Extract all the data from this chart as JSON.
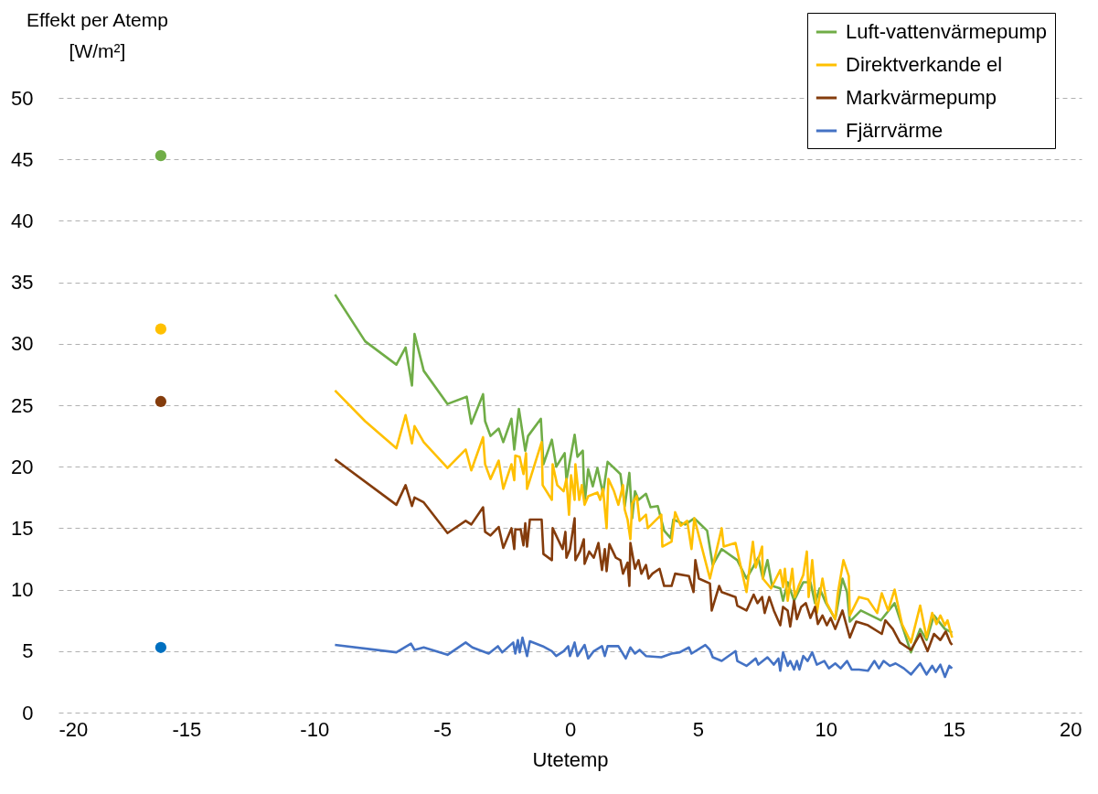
{
  "chart_data": {
    "type": "line",
    "xlabel": "Utetemp",
    "ylabel": "Effekt per Atemp [W/m²]",
    "xlim": [
      -20,
      20
    ],
    "xticks": [
      -20,
      -15,
      -10,
      -5,
      0,
      5,
      10,
      15,
      20
    ],
    "ylim": [
      0,
      50
    ],
    "yticks": [
      0,
      5,
      10,
      15,
      20,
      25,
      30,
      35,
      40,
      45,
      50
    ],
    "grid": "y",
    "legend": "top right",
    "line_style": "solid",
    "marker": "none",
    "series": [
      {
        "name": "Luft-vattenvärmepump",
        "color": "#70ad47",
        "x": [
          -9.19,
          -8.01,
          -6.79,
          -6.43,
          -6.18,
          -6.08,
          -5.72,
          -4.79,
          -4.04,
          -3.86,
          -3.4,
          -3.32,
          -3.11,
          -2.79,
          -2.61,
          -2.29,
          -2.18,
          -2.0,
          -1.75,
          -1.64,
          -1.14,
          -1.04,
          -0.71,
          -0.54,
          -0.21,
          -0.14,
          0.18,
          0.29,
          0.5,
          0.57,
          0.71,
          0.89,
          1.07,
          1.29,
          1.47,
          1.97,
          2.14,
          2.32,
          2.43,
          2.54,
          2.68,
          2.97,
          3.15,
          3.43,
          3.68,
          3.93,
          4.04,
          4.5,
          4.86,
          5.36,
          5.58,
          5.93,
          6.54,
          6.9,
          7.15,
          7.36,
          7.54,
          7.72,
          7.9,
          8.22,
          8.33,
          8.51,
          8.76,
          9.12,
          9.4,
          9.58,
          9.76,
          10.01,
          10.37,
          10.65,
          10.83,
          10.94,
          11.37,
          12.15,
          12.69,
          12.98,
          13.33,
          13.69,
          13.94,
          14.23,
          14.66,
          14.94
        ],
        "values": [
          34.0,
          30.2,
          28.3,
          29.7,
          26.6,
          30.8,
          27.8,
          25.1,
          25.7,
          23.5,
          25.9,
          23.7,
          22.5,
          23.1,
          22.0,
          23.9,
          21.4,
          24.7,
          21.3,
          22.5,
          23.9,
          20.2,
          22.2,
          20.0,
          21.1,
          18.9,
          22.6,
          20.8,
          21.3,
          17.0,
          19.8,
          18.4,
          19.9,
          17.8,
          20.4,
          19.4,
          16.8,
          19.5,
          15.8,
          18.0,
          17.3,
          17.8,
          16.7,
          16.8,
          14.8,
          14.2,
          15.7,
          15.3,
          15.8,
          14.8,
          12.0,
          13.3,
          12.4,
          10.9,
          11.8,
          12.6,
          10.9,
          12.4,
          10.3,
          10.1,
          9.1,
          10.6,
          9.1,
          10.6,
          10.6,
          8.9,
          10.1,
          8.9,
          7.6,
          10.9,
          9.8,
          7.4,
          8.3,
          7.5,
          8.9,
          7.1,
          4.9,
          6.8,
          5.9,
          7.9,
          6.8,
          6.5
        ]
      },
      {
        "name": "Direktverkande el",
        "color": "#ffc000",
        "x": [
          -9.19,
          -8.01,
          -6.79,
          -6.43,
          -6.18,
          -6.08,
          -5.72,
          -4.79,
          -4.08,
          -3.86,
          -3.4,
          -3.32,
          -3.11,
          -2.79,
          -2.61,
          -2.29,
          -2.18,
          -2.14,
          -1.97,
          -1.82,
          -1.72,
          -1.68,
          -1.11,
          -1.07,
          -0.71,
          -0.68,
          -0.5,
          -0.25,
          -0.14,
          -0.04,
          0.04,
          0.18,
          0.21,
          0.36,
          0.46,
          0.57,
          0.71,
          1.07,
          1.18,
          1.29,
          1.43,
          1.5,
          1.72,
          1.89,
          2.07,
          2.14,
          2.25,
          2.36,
          2.43,
          2.61,
          2.72,
          2.97,
          3.04,
          3.57,
          3.61,
          3.97,
          4.11,
          4.33,
          4.58,
          4.75,
          4.86,
          5.47,
          5.93,
          6.01,
          6.47,
          6.9,
          7.15,
          7.26,
          7.51,
          7.54,
          7.86,
          8.22,
          8.33,
          8.4,
          8.51,
          8.69,
          8.79,
          8.94,
          9.12,
          9.26,
          9.33,
          9.47,
          9.65,
          9.87,
          10.04,
          10.37,
          10.47,
          10.69,
          10.9,
          10.94,
          11.3,
          11.65,
          12.01,
          12.19,
          12.44,
          12.69,
          12.98,
          13.33,
          13.69,
          13.94,
          14.16,
          14.33,
          14.48,
          14.66,
          14.76,
          14.94
        ],
        "values": [
          26.2,
          23.7,
          21.5,
          24.2,
          21.9,
          23.3,
          22.0,
          19.9,
          21.4,
          19.7,
          22.4,
          20.2,
          19.0,
          20.5,
          18.2,
          20.2,
          18.9,
          20.9,
          20.8,
          19.4,
          21.1,
          18.2,
          22.0,
          18.5,
          17.3,
          20.2,
          18.5,
          18.0,
          19.0,
          16.1,
          19.3,
          17.3,
          20.2,
          17.3,
          18.5,
          16.9,
          17.6,
          17.9,
          17.3,
          18.2,
          15.0,
          19.0,
          18.0,
          16.9,
          18.5,
          16.5,
          15.7,
          14.1,
          17.0,
          17.6,
          15.6,
          16.1,
          15.0,
          16.1,
          13.5,
          13.9,
          16.3,
          15.2,
          15.6,
          13.3,
          15.8,
          10.9,
          15.0,
          13.5,
          13.8,
          9.8,
          13.9,
          11.8,
          13.5,
          10.9,
          10.1,
          11.6,
          10.2,
          11.7,
          9.1,
          11.7,
          9.4,
          10.3,
          11.2,
          13.1,
          9.4,
          12.4,
          8.1,
          10.9,
          8.9,
          7.6,
          9.7,
          12.4,
          11.1,
          7.9,
          9.4,
          9.2,
          8.1,
          9.7,
          8.3,
          10.0,
          7.2,
          5.7,
          8.7,
          6.1,
          8.1,
          7.2,
          7.9,
          7.1,
          7.5,
          6.1
        ]
      },
      {
        "name": "Markvärmepump",
        "color": "#843c0c",
        "x": [
          -9.19,
          -6.79,
          -6.43,
          -6.18,
          -6.08,
          -5.72,
          -4.79,
          -4.08,
          -3.86,
          -3.4,
          -3.32,
          -3.11,
          -2.79,
          -2.61,
          -2.29,
          -2.18,
          -2.14,
          -1.93,
          -1.82,
          -1.75,
          -1.68,
          -1.57,
          -1.11,
          -1.04,
          -0.71,
          -0.68,
          -0.29,
          -0.18,
          -0.14,
          0.0,
          0.18,
          0.21,
          0.39,
          0.54,
          0.57,
          0.75,
          0.93,
          1.11,
          1.25,
          1.36,
          1.43,
          1.54,
          1.79,
          1.97,
          2.07,
          2.25,
          2.32,
          2.36,
          2.54,
          2.68,
          2.79,
          2.97,
          3.07,
          3.22,
          3.5,
          3.68,
          3.97,
          4.11,
          4.65,
          4.83,
          4.9,
          5.04,
          5.47,
          5.54,
          5.83,
          5.93,
          6.47,
          6.54,
          6.9,
          7.18,
          7.33,
          7.51,
          7.61,
          7.79,
          7.97,
          8.22,
          8.33,
          8.51,
          8.61,
          8.76,
          8.87,
          9.04,
          9.22,
          9.4,
          9.58,
          9.69,
          9.87,
          10.04,
          10.19,
          10.37,
          10.65,
          10.94,
          11.19,
          11.65,
          12.19,
          12.33,
          12.62,
          12.9,
          13.33,
          13.69,
          13.98,
          14.23,
          14.48,
          14.69,
          14.87,
          14.94
        ],
        "values": [
          20.6,
          16.9,
          18.5,
          16.8,
          17.5,
          17.1,
          14.6,
          15.6,
          15.3,
          16.7,
          14.7,
          14.4,
          15.1,
          13.4,
          15.0,
          13.3,
          14.9,
          14.9,
          13.6,
          15.4,
          13.5,
          15.7,
          15.7,
          12.9,
          12.4,
          15.0,
          13.3,
          14.7,
          12.6,
          13.3,
          15.8,
          12.4,
          13.1,
          14.1,
          12.1,
          13.1,
          12.6,
          13.8,
          11.6,
          13.3,
          11.5,
          13.7,
          12.6,
          12.4,
          11.3,
          12.2,
          10.3,
          13.8,
          11.7,
          12.4,
          11.3,
          12.0,
          10.9,
          11.3,
          11.7,
          10.3,
          10.3,
          11.3,
          11.1,
          9.8,
          12.4,
          10.9,
          10.5,
          8.3,
          10.3,
          9.8,
          9.4,
          8.7,
          8.3,
          9.6,
          8.9,
          9.4,
          8.1,
          9.4,
          8.3,
          7.1,
          8.6,
          8.3,
          7.0,
          9.1,
          7.6,
          8.6,
          8.9,
          7.7,
          8.6,
          7.2,
          7.9,
          7.1,
          7.7,
          6.8,
          8.3,
          6.1,
          7.4,
          7.1,
          6.4,
          7.5,
          6.8,
          5.7,
          5.1,
          6.4,
          5.0,
          6.4,
          5.9,
          6.6,
          5.7,
          5.5
        ]
      },
      {
        "name": "Fjärrvärme",
        "color": "#4472c4",
        "x": [
          -9.19,
          -6.79,
          -6.22,
          -6.08,
          -5.72,
          -4.79,
          -4.08,
          -3.82,
          -3.18,
          -2.82,
          -2.65,
          -2.22,
          -2.14,
          -2.04,
          -1.97,
          -1.86,
          -1.68,
          -1.57,
          -1.07,
          -0.71,
          -0.54,
          -0.25,
          -0.07,
          0.0,
          0.18,
          0.29,
          0.57,
          0.71,
          0.93,
          1.25,
          1.36,
          1.47,
          1.89,
          2.18,
          2.36,
          2.54,
          2.72,
          2.97,
          3.57,
          3.97,
          4.29,
          4.65,
          4.75,
          5.29,
          5.47,
          5.58,
          5.93,
          6.47,
          6.54,
          6.9,
          7.26,
          7.36,
          7.72,
          7.97,
          8.15,
          8.22,
          8.33,
          8.51,
          8.61,
          8.76,
          8.87,
          8.97,
          9.12,
          9.29,
          9.47,
          9.65,
          9.94,
          10.12,
          10.37,
          10.58,
          10.83,
          11.01,
          11.3,
          11.65,
          11.9,
          12.08,
          12.26,
          12.51,
          12.73,
          13.05,
          13.33,
          13.69,
          13.94,
          14.16,
          14.3,
          14.48,
          14.66,
          14.83,
          14.94
        ],
        "values": [
          5.5,
          4.9,
          5.6,
          5.1,
          5.3,
          4.7,
          5.7,
          5.3,
          4.8,
          5.4,
          4.9,
          5.7,
          4.8,
          5.9,
          4.9,
          6.1,
          4.6,
          5.8,
          5.4,
          5.0,
          4.6,
          5.0,
          5.4,
          4.6,
          5.7,
          4.6,
          5.5,
          4.4,
          5.0,
          5.4,
          4.6,
          5.4,
          5.4,
          4.4,
          5.3,
          4.8,
          5.1,
          4.6,
          4.5,
          4.8,
          4.9,
          5.3,
          4.8,
          5.5,
          5.1,
          4.5,
          4.2,
          5.0,
          4.2,
          3.8,
          4.4,
          3.9,
          4.5,
          3.9,
          4.4,
          3.4,
          4.9,
          3.8,
          4.2,
          3.5,
          4.2,
          3.5,
          4.6,
          4.2,
          4.9,
          3.9,
          4.2,
          3.6,
          4.0,
          3.6,
          4.2,
          3.5,
          3.5,
          3.4,
          4.2,
          3.6,
          4.2,
          3.8,
          4.0,
          3.6,
          3.1,
          4.0,
          3.1,
          3.8,
          3.3,
          3.9,
          2.9,
          3.8,
          3.6
        ]
      },
      {
        "type": "scatter",
        "marker": "circle",
        "color": "#70ad47",
        "x": [
          -16
        ],
        "values": [
          45.3
        ]
      },
      {
        "type": "scatter",
        "marker": "circle",
        "color": "#ffc000",
        "x": [
          -16
        ],
        "values": [
          31.2
        ]
      },
      {
        "type": "scatter",
        "marker": "circle",
        "color": "#843c0c",
        "x": [
          -16
        ],
        "values": [
          25.3
        ]
      },
      {
        "type": "scatter",
        "marker": "circle",
        "color": "#0070c0",
        "x": [
          -16
        ],
        "values": [
          5.3
        ]
      }
    ]
  }
}
